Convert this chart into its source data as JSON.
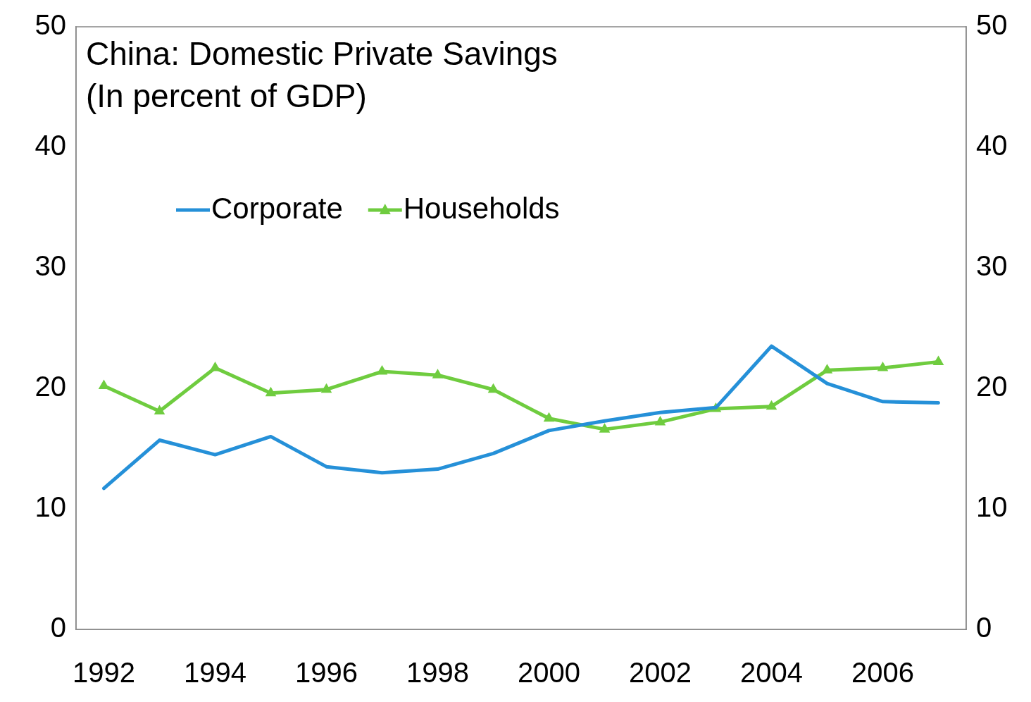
{
  "chart_data": {
    "type": "line",
    "title": "China: Domestic Private Savings",
    "subtitle": "(In percent of GDP)",
    "categories": [
      "1992",
      null,
      "1994",
      null,
      "1996",
      null,
      "1998",
      null,
      "2000",
      null,
      "2002",
      null,
      "2004",
      null,
      "2006",
      null
    ],
    "series": [
      {
        "name": "Corporate",
        "color": "#2590d8",
        "marker": "none",
        "values": [
          11.7,
          15.7,
          14.5,
          16.0,
          13.5,
          13.0,
          13.3,
          14.6,
          16.5,
          17.3,
          18.0,
          18.4,
          23.5,
          20.4,
          18.9,
          18.8
        ]
      },
      {
        "name": "Households",
        "color": "#6fcc3f",
        "marker": "triangle",
        "values": [
          20.2,
          18.1,
          21.7,
          19.6,
          19.9,
          21.4,
          21.1,
          19.9,
          17.5,
          16.6,
          17.2,
          18.3,
          18.5,
          21.5,
          21.7,
          22.2
        ]
      }
    ],
    "ylim": [
      0,
      50
    ],
    "yticks": [
      0,
      10,
      20,
      30,
      40,
      50
    ],
    "y2lim": [
      0,
      50
    ],
    "y2ticks": [
      0,
      10,
      20,
      30,
      40,
      50
    ],
    "grid": false,
    "legend": "top left",
    "line_style": "solid"
  }
}
